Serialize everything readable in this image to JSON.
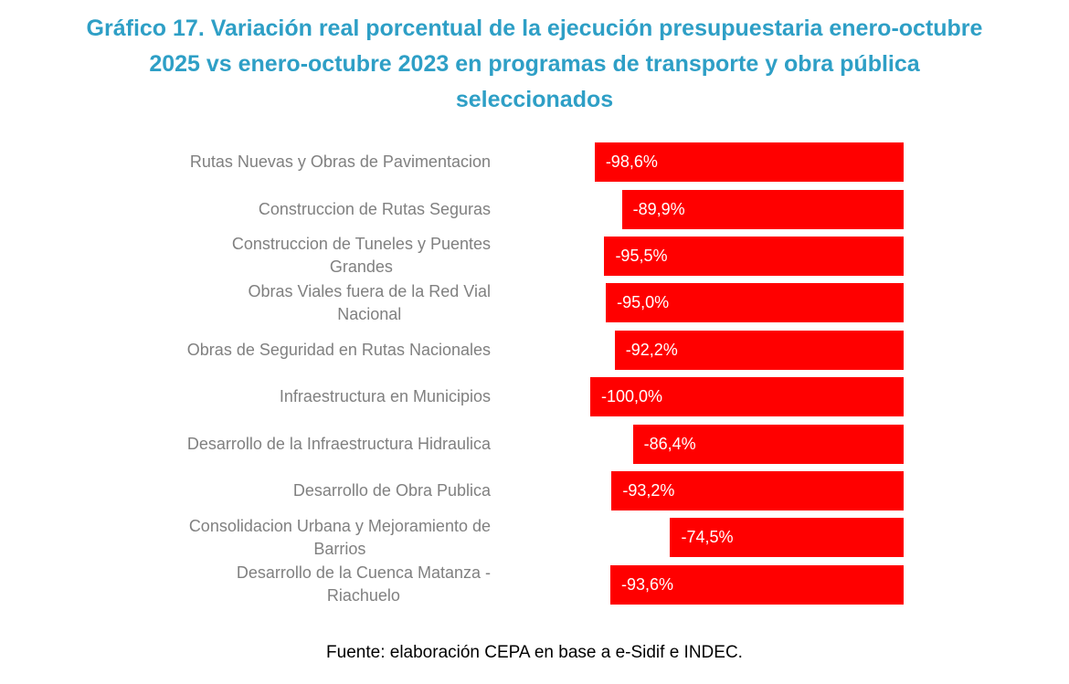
{
  "title": {
    "text": "Gráfico 17. Variación real porcentual de la ejecución presupuestaria enero-octubre\n2025 vs enero-octubre 2023 en programas de transporte y obra pública\nseleccionados",
    "color": "#2E9FC6"
  },
  "footer": {
    "text": "Fuente: elaboración CEPA en base a e-Sidif e INDEC."
  },
  "chart_data": {
    "type": "bar",
    "orientation": "horizontal",
    "title": "Gráfico 17. Variación real porcentual de la ejecución presupuestaria enero-octubre 2025 vs enero-octubre 2023 en programas de transporte y obra pública seleccionados",
    "categories": [
      "Rutas Nuevas y Obras de Pavimentacion",
      "Construccion de Rutas Seguras",
      "Construccion de Tuneles y Puentes Grandes",
      "Obras Viales fuera de la Red Vial Nacional",
      "Obras de Seguridad en Rutas Nacionales",
      "Infraestructura en Municipios",
      "Desarrollo de la Infraestructura Hidraulica",
      "Desarrollo de Obra Publica",
      "Consolidacion Urbana y Mejoramiento de Barrios",
      "Desarrollo de la Cuenca Matanza - Riachuelo"
    ],
    "category_display": [
      "Rutas Nuevas y Obras de Pavimentacion",
      "Construccion de Rutas Seguras",
      "Construccion de Tuneles y Puentes\nGrandes",
      "Obras Viales fuera de la Red Vial\nNacional",
      "Obras de Seguridad en Rutas Nacionales",
      "Infraestructura en Municipios",
      "Desarrollo de la Infraestructura Hidraulica",
      "Desarrollo de Obra Publica",
      "Consolidacion Urbana y Mejoramiento de\nBarrios",
      "Desarrollo de la Cuenca Matanza -\nRiachuelo"
    ],
    "values": [
      -98.6,
      -89.9,
      -95.5,
      -95.0,
      -92.2,
      -100.0,
      -86.4,
      -93.2,
      -74.5,
      -93.6
    ],
    "value_labels": [
      "-98,6%",
      "-89,9%",
      "-95,5%",
      "-95,0%",
      "-92,2%",
      "-100,0%",
      "-86,4%",
      "-93,2%",
      "-74,5%",
      "-93,6%"
    ],
    "xlim": [
      -100,
      0
    ],
    "bar_color": "#FF0000",
    "value_label_color": "#FFFFFF",
    "category_label_color": "#808080",
    "grid": false,
    "legend": false
  }
}
